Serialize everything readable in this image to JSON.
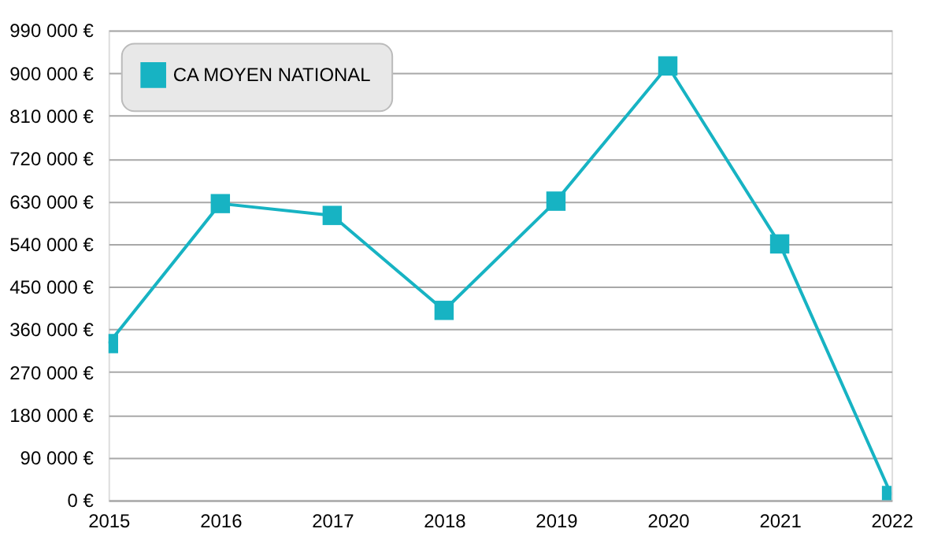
{
  "chart_data": {
    "type": "line",
    "categories": [
      "2015",
      "2016",
      "2017",
      "2018",
      "2019",
      "2020",
      "2021",
      "2022"
    ],
    "series": [
      {
        "name": "CA MOYEN NATIONAL",
        "color": "#17b3c3",
        "values": [
          330000,
          625000,
          600000,
          400000,
          630000,
          915000,
          540000,
          10000
        ]
      }
    ],
    "ylim": [
      0,
      990000
    ],
    "yticks": [
      {
        "value": 0,
        "label": "0 €"
      },
      {
        "value": 90000,
        "label": "90 000 €"
      },
      {
        "value": 180000,
        "label": "180 000 €"
      },
      {
        "value": 270000,
        "label": "270 000 €"
      },
      {
        "value": 360000,
        "label": "360 000 €"
      },
      {
        "value": 450000,
        "label": "450 000 €"
      },
      {
        "value": 540000,
        "label": "540 000 €"
      },
      {
        "value": 630000,
        "label": "630 000 €"
      },
      {
        "value": 720000,
        "label": "720 000 €"
      },
      {
        "value": 810000,
        "label": "810 000 €"
      },
      {
        "value": 900000,
        "label": "900 000 €"
      },
      {
        "value": 990000,
        "label": "990 000 €"
      }
    ],
    "grid": "y",
    "legend": "top left",
    "marker": "square",
    "line_style": "solid"
  }
}
